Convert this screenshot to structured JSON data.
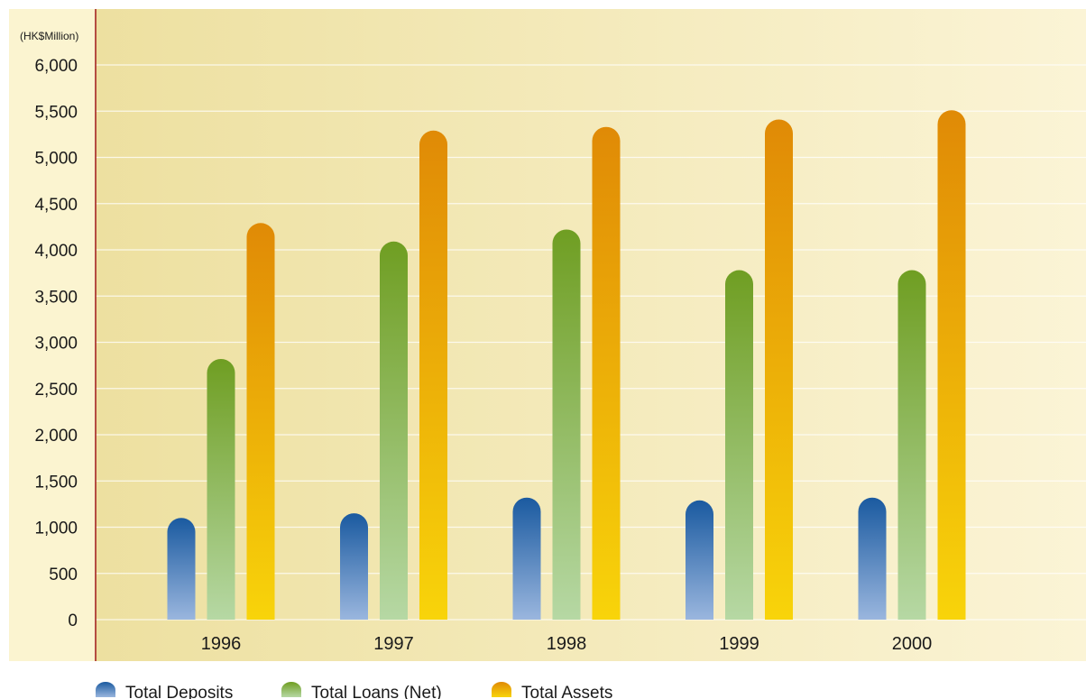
{
  "chart_data": {
    "type": "bar",
    "unit_label": "(HK$Million)",
    "categories": [
      "1996",
      "1997",
      "1998",
      "1999",
      "2000"
    ],
    "series": [
      {
        "name": "Total Deposits",
        "values": [
          1100,
          1150,
          1320,
          1290,
          1320
        ]
      },
      {
        "name": "Total Loans (Net)",
        "values": [
          2820,
          4090,
          4220,
          3780,
          3780
        ]
      },
      {
        "name": "Total Assets",
        "values": [
          4290,
          5290,
          5330,
          5410,
          5510
        ]
      }
    ],
    "yticks": [
      "0",
      "500",
      "1,000",
      "1,500",
      "2,000",
      "2,500",
      "3,000",
      "3,500",
      "4,000",
      "4,500",
      "5,000",
      "5,500",
      "6,000"
    ],
    "ylim": [
      0,
      6000
    ],
    "grid": true,
    "legend_position": "bottom-left",
    "colors": {
      "deposits_top": "#1a5aa0",
      "deposits_bottom": "#9ab6de",
      "loans_top": "#6f9e22",
      "loans_bottom": "#b6d8a4",
      "assets_top": "#e08a06",
      "assets_bottom": "#f8d40a",
      "axis_line": "#a01818"
    }
  }
}
